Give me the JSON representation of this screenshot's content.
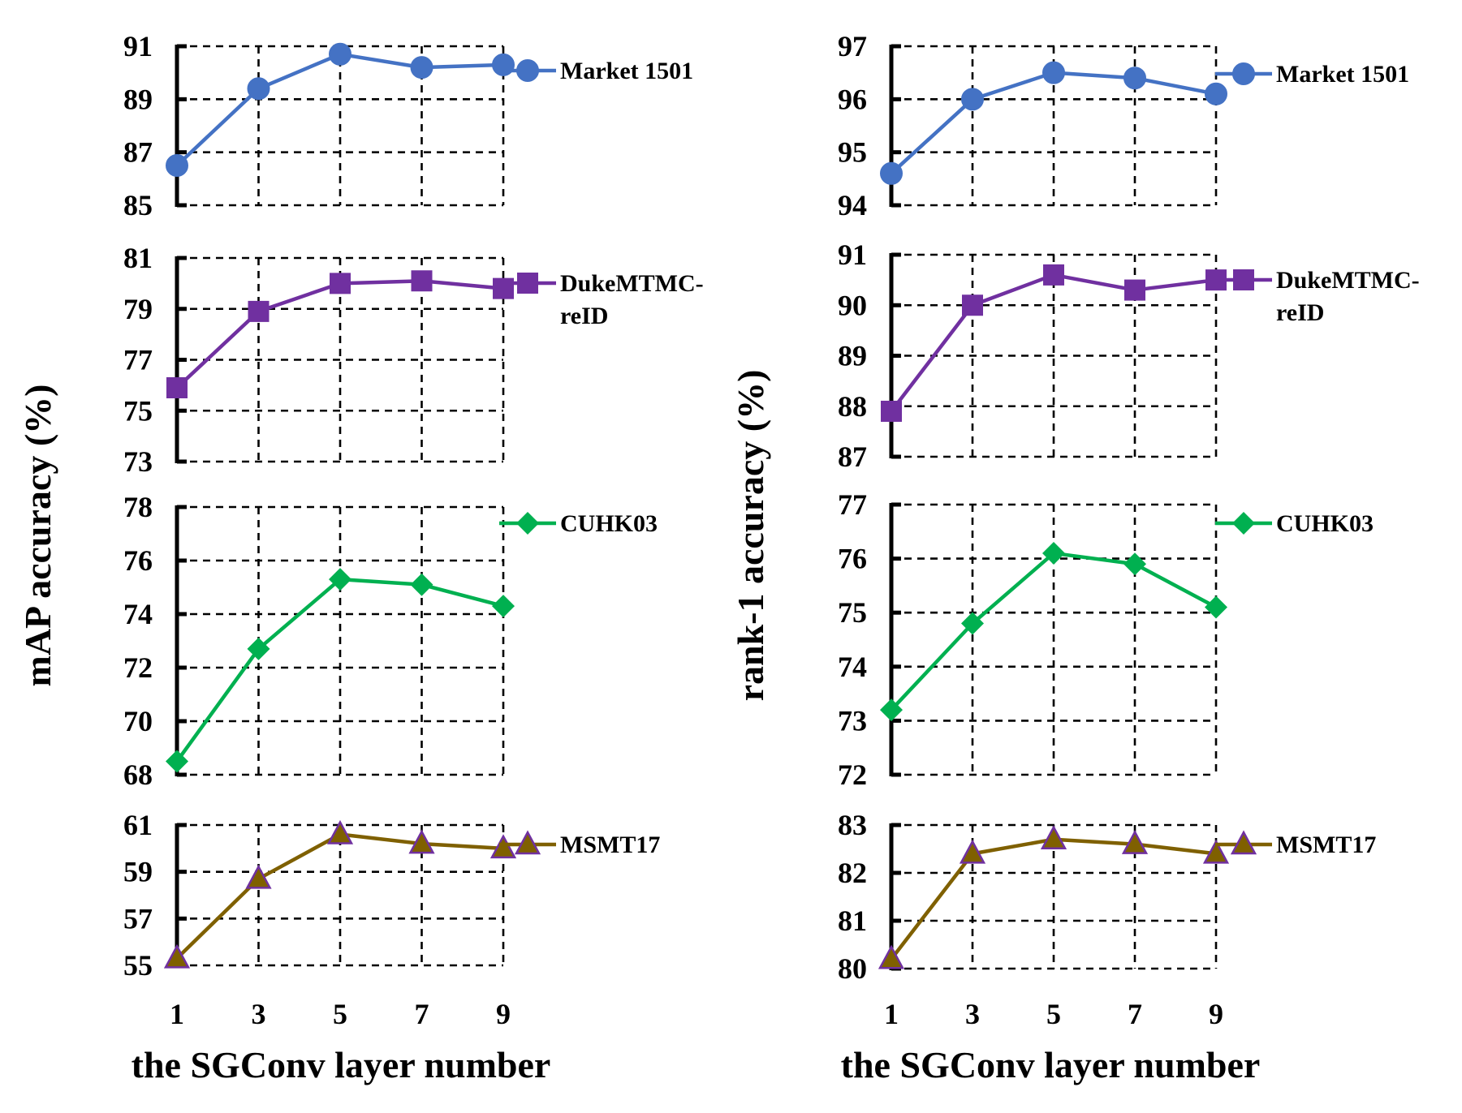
{
  "chart_data": [
    {
      "type": "line",
      "name": "mAP",
      "ylabel": "mAP accuracy (%)",
      "xlabel": "the SGConv layer number",
      "x": [
        1,
        3,
        5,
        7,
        9
      ],
      "x_ticks": [
        "1",
        "3",
        "5",
        "7",
        "9"
      ],
      "grid": true,
      "subplots": [
        {
          "series": "Market 1501",
          "legend_lines": [
            "Market 1501"
          ],
          "marker": "circle",
          "color": "#4472C4",
          "edge": "#4472C4",
          "ylim": [
            85,
            91
          ],
          "y_ticks": [
            "85",
            "87",
            "89",
            "91"
          ],
          "values": [
            86.5,
            89.4,
            90.7,
            90.2,
            90.3
          ]
        },
        {
          "series": "DukeMTMC-reID",
          "legend_lines": [
            "DukeMTMC-",
            "reID"
          ],
          "marker": "square",
          "color": "#7030A0",
          "edge": "#7030A0",
          "ylim": [
            73,
            81
          ],
          "y_ticks": [
            "73",
            "75",
            "77",
            "79",
            "81"
          ],
          "values": [
            75.9,
            78.9,
            80.0,
            80.1,
            79.8
          ]
        },
        {
          "series": "CUHK03",
          "legend_lines": [
            "CUHK03"
          ],
          "marker": "diamond",
          "color": "#00B050",
          "edge": "#00B050",
          "ylim": [
            68,
            78
          ],
          "y_ticks": [
            "68",
            "70",
            "72",
            "74",
            "76",
            "78"
          ],
          "values": [
            68.5,
            72.7,
            75.3,
            75.1,
            74.3
          ]
        },
        {
          "series": "MSMT17",
          "legend_lines": [
            "MSMT17"
          ],
          "marker": "triangle",
          "color": "#7F6000",
          "edge": "#7030A0",
          "ylim": [
            55,
            61
          ],
          "y_ticks": [
            "55",
            "57",
            "59",
            "61"
          ],
          "values": [
            55.3,
            58.7,
            60.6,
            60.2,
            60.0
          ]
        }
      ]
    },
    {
      "type": "line",
      "name": "rank-1",
      "ylabel": "rank-1 accuracy (%)",
      "xlabel": "the SGConv layer number",
      "x": [
        1,
        3,
        5,
        7,
        9
      ],
      "x_ticks": [
        "1",
        "3",
        "5",
        "7",
        "9"
      ],
      "grid": true,
      "subplots": [
        {
          "series": "Market 1501",
          "legend_lines": [
            "Market 1501"
          ],
          "marker": "circle",
          "color": "#4472C4",
          "edge": "#4472C4",
          "ylim": [
            94,
            97
          ],
          "y_ticks": [
            "94",
            "95",
            "96",
            "97"
          ],
          "values": [
            94.6,
            96.0,
            96.5,
            96.4,
            96.1
          ]
        },
        {
          "series": "DukeMTMC-reID",
          "legend_lines": [
            "DukeMTMC-",
            "reID"
          ],
          "marker": "square",
          "color": "#7030A0",
          "edge": "#7030A0",
          "ylim": [
            87,
            91
          ],
          "y_ticks": [
            "87",
            "88",
            "89",
            "90",
            "91"
          ],
          "values": [
            87.9,
            90.0,
            90.6,
            90.3,
            90.5
          ]
        },
        {
          "series": "CUHK03",
          "legend_lines": [
            "CUHK03"
          ],
          "marker": "diamond",
          "color": "#00B050",
          "edge": "#00B050",
          "ylim": [
            72,
            77
          ],
          "y_ticks": [
            "72",
            "73",
            "74",
            "75",
            "76",
            "77"
          ],
          "values": [
            73.2,
            74.8,
            76.1,
            75.9,
            75.1
          ]
        },
        {
          "series": "MSMT17",
          "legend_lines": [
            "MSMT17"
          ],
          "marker": "triangle",
          "color": "#7F6000",
          "edge": "#7030A0",
          "ylim": [
            80,
            83
          ],
          "y_ticks": [
            "80",
            "81",
            "82",
            "83"
          ],
          "values": [
            80.2,
            82.4,
            82.7,
            82.6,
            82.4
          ]
        }
      ]
    }
  ]
}
